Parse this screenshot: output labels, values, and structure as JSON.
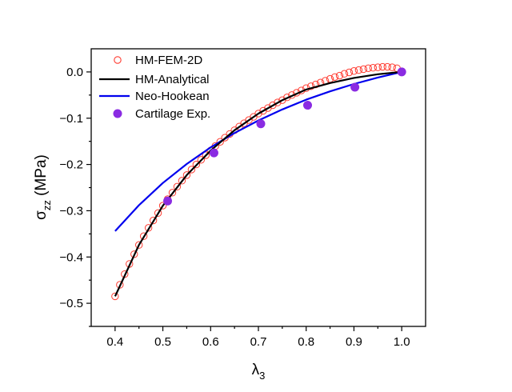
{
  "chart_data": {
    "type": "line",
    "xlabel": "λ",
    "xlabel_sub": "3",
    "ylabel": "σ",
    "ylabel_sub": "zz",
    "ylabel_unit": " (MPa)",
    "xlim": [
      0.35,
      1.05
    ],
    "ylim": [
      -0.55,
      0.05
    ],
    "xticks": [
      0.4,
      0.5,
      0.6,
      0.7,
      0.8,
      0.9,
      1.0
    ],
    "xtick_labels": [
      "0.4",
      "0.5",
      "0.6",
      "0.7",
      "0.8",
      "0.9",
      "1.0"
    ],
    "yticks": [
      0.0,
      -0.1,
      -0.2,
      -0.3,
      -0.4,
      -0.5
    ],
    "ytick_labels": [
      "0.0",
      "−0.1",
      "−0.2",
      "−0.3",
      "−0.4",
      "−0.5"
    ],
    "grid": false,
    "legend_position": "top-left",
    "series": [
      {
        "name": "HM-FEM-2D",
        "style": "open-circle-markers",
        "color": "#ff3b30",
        "x": [
          0.4,
          0.41,
          0.42,
          0.43,
          0.44,
          0.45,
          0.46,
          0.47,
          0.48,
          0.49,
          0.5,
          0.51,
          0.52,
          0.53,
          0.54,
          0.55,
          0.56,
          0.57,
          0.58,
          0.59,
          0.6,
          0.61,
          0.62,
          0.63,
          0.64,
          0.65,
          0.66,
          0.67,
          0.68,
          0.69,
          0.7,
          0.71,
          0.72,
          0.73,
          0.74,
          0.75,
          0.76,
          0.77,
          0.78,
          0.79,
          0.8,
          0.81,
          0.82,
          0.83,
          0.84,
          0.85,
          0.86,
          0.87,
          0.88,
          0.89,
          0.9,
          0.91,
          0.92,
          0.93,
          0.94,
          0.95,
          0.96,
          0.97,
          0.98,
          0.99,
          1.0
        ],
        "y": [
          -0.485,
          -0.46,
          -0.437,
          -0.415,
          -0.394,
          -0.374,
          -0.355,
          -0.337,
          -0.321,
          -0.305,
          -0.289,
          -0.275,
          -0.261,
          -0.248,
          -0.235,
          -0.223,
          -0.211,
          -0.2,
          -0.19,
          -0.18,
          -0.17,
          -0.16,
          -0.151,
          -0.142,
          -0.134,
          -0.126,
          -0.118,
          -0.111,
          -0.104,
          -0.097,
          -0.09,
          -0.084,
          -0.078,
          -0.072,
          -0.066,
          -0.061,
          -0.055,
          -0.05,
          -0.045,
          -0.04,
          -0.035,
          -0.031,
          -0.027,
          -0.023,
          -0.019,
          -0.015,
          -0.011,
          -0.008,
          -0.004,
          -0.001,
          0.002,
          0.004,
          0.006,
          0.008,
          0.009,
          0.01,
          0.011,
          0.011,
          0.01,
          0.008,
          0.0
        ]
      },
      {
        "name": "HM-Analytical",
        "style": "line",
        "color": "#000000",
        "x": [
          0.4,
          0.45,
          0.5,
          0.55,
          0.6,
          0.65,
          0.7,
          0.75,
          0.8,
          0.85,
          0.9,
          0.95,
          1.0
        ],
        "y": [
          -0.485,
          -0.374,
          -0.289,
          -0.223,
          -0.17,
          -0.126,
          -0.09,
          -0.061,
          -0.038,
          -0.024,
          -0.013,
          -0.005,
          0.0
        ]
      },
      {
        "name": "Neo-Hookean",
        "style": "line",
        "color": "#0000ee",
        "x": [
          0.4,
          0.45,
          0.5,
          0.55,
          0.6,
          0.65,
          0.7,
          0.75,
          0.8,
          0.85,
          0.9,
          0.95,
          1.0
        ],
        "y": [
          -0.344,
          -0.288,
          -0.24,
          -0.199,
          -0.163,
          -0.132,
          -0.105,
          -0.081,
          -0.06,
          -0.042,
          -0.026,
          -0.012,
          0.0
        ]
      },
      {
        "name": "Cartilage Exp.",
        "style": "filled-circle-markers",
        "color": "#8a2be2",
        "x": [
          0.51,
          0.607,
          0.705,
          0.803,
          0.902,
          1.0
        ],
        "y": [
          -0.279,
          -0.175,
          -0.112,
          -0.072,
          -0.033,
          0.0
        ]
      }
    ]
  }
}
